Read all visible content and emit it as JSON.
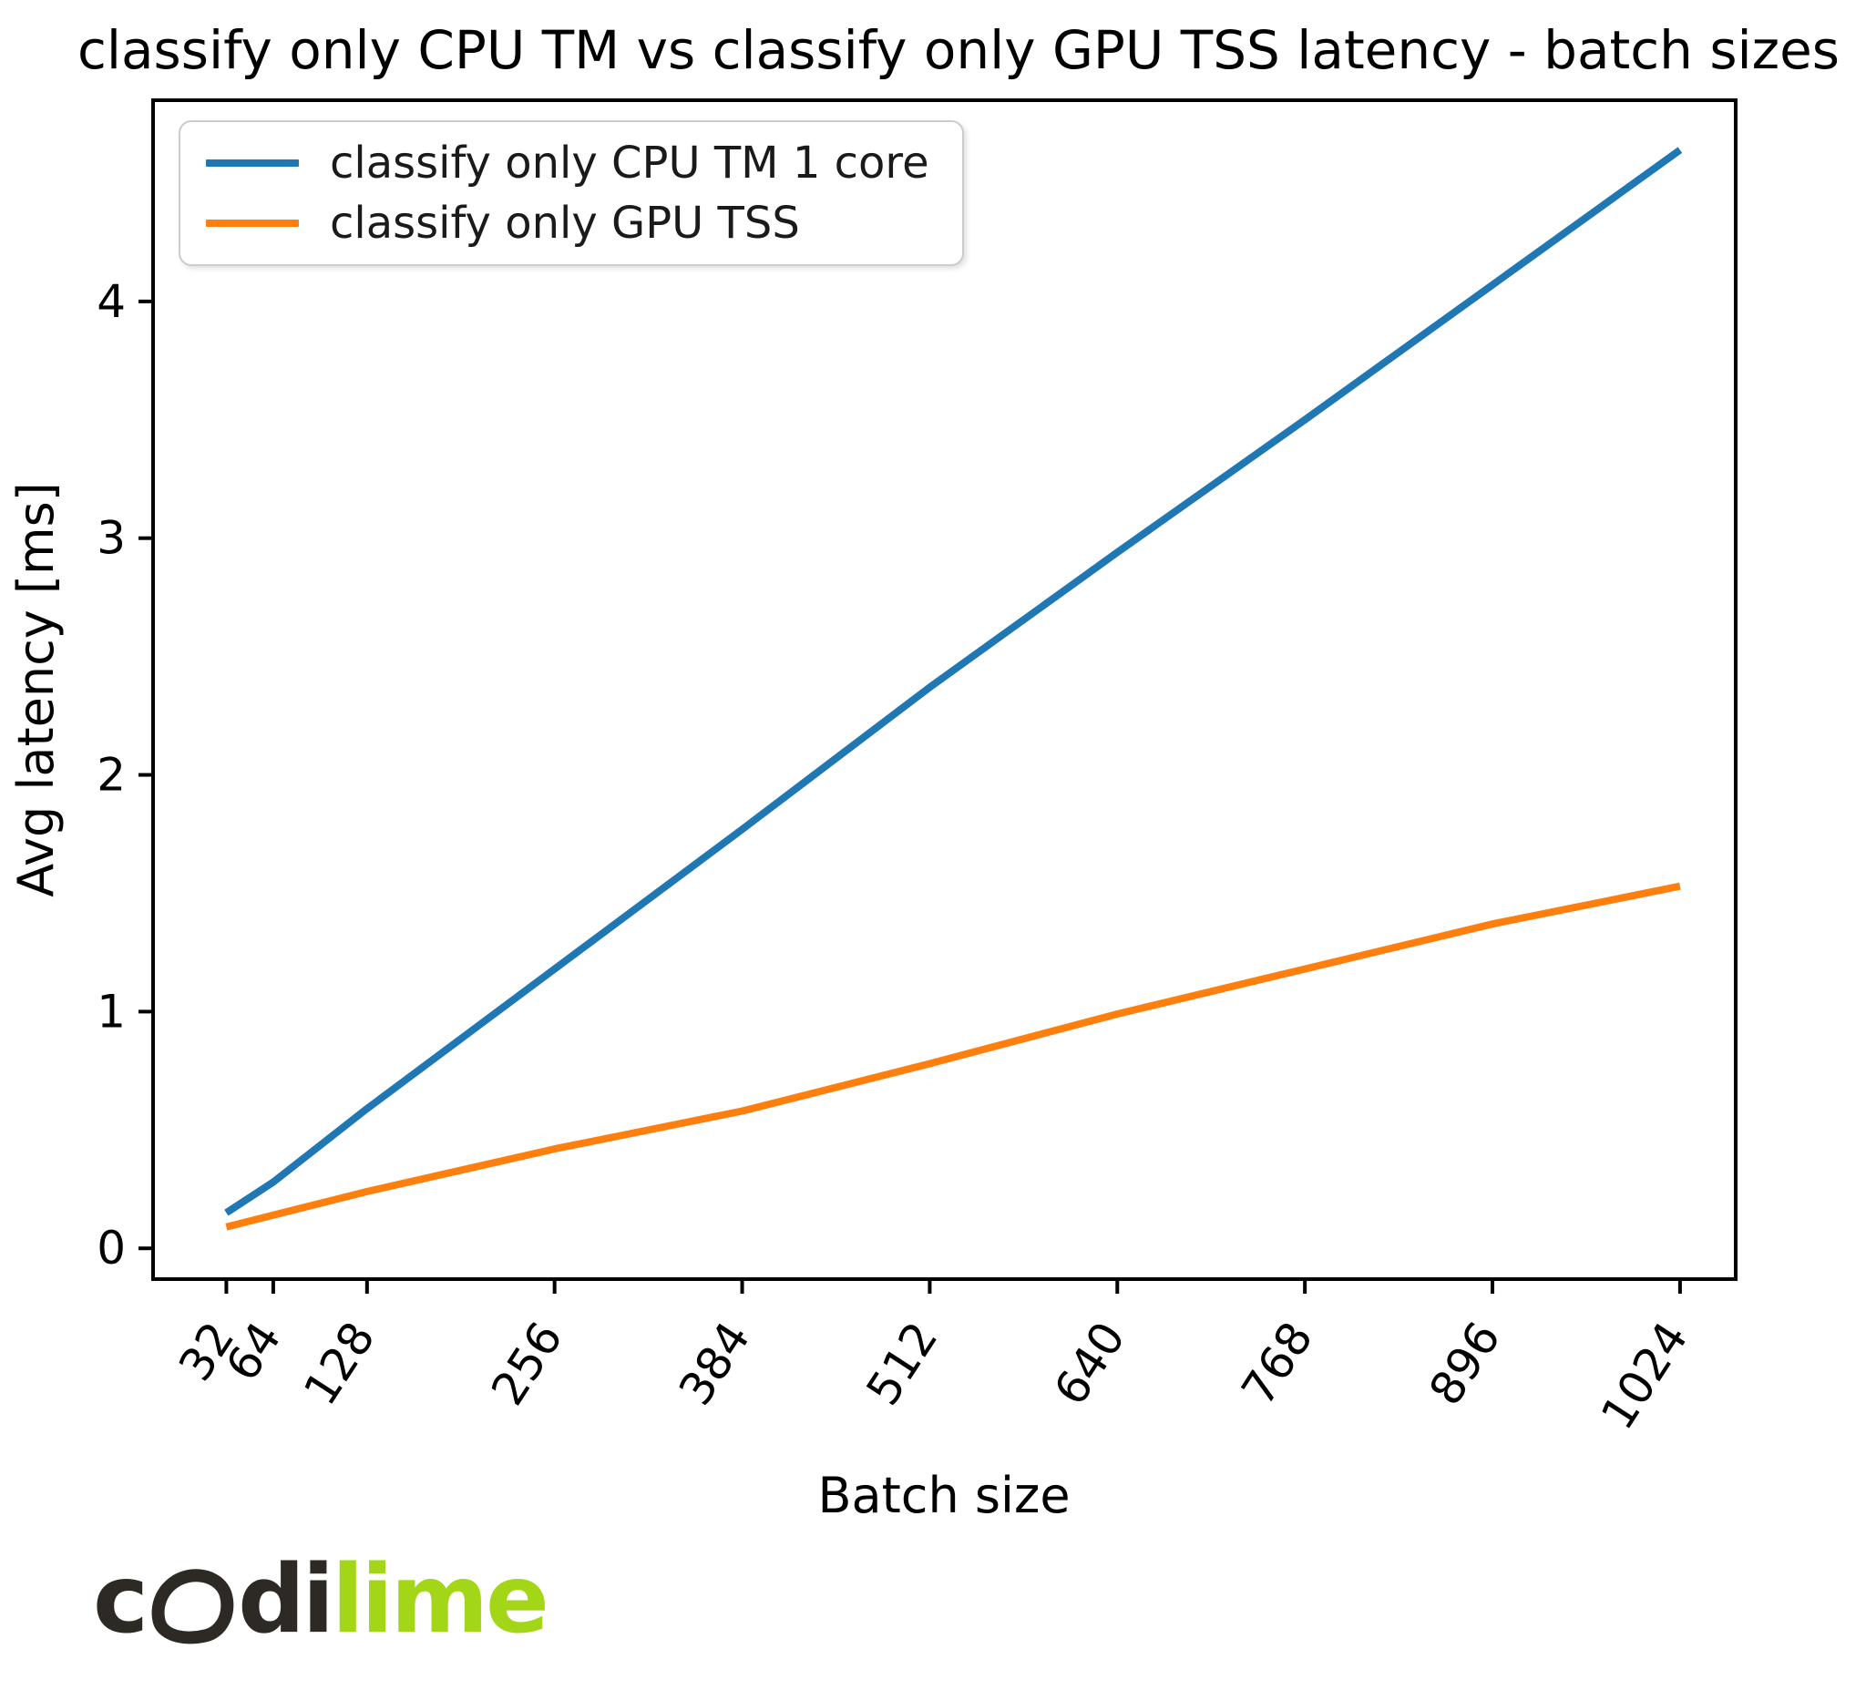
{
  "title": "classify only CPU TM vs classify only GPU TSS latency - batch sizes",
  "chart_data": {
    "type": "line",
    "x": [
      32,
      64,
      128,
      256,
      384,
      512,
      640,
      768,
      896,
      1024
    ],
    "x_ticks": [
      "32",
      "64",
      "128",
      "256",
      "384",
      "512",
      "640",
      "768",
      "896",
      "1024"
    ],
    "y_ticks": [
      "0",
      "1",
      "2",
      "3",
      "4"
    ],
    "y_tick_values": [
      0,
      1,
      2,
      3,
      4
    ],
    "series": [
      {
        "name": "classify only CPU TM 1 core",
        "color": "#1f77b4",
        "values": [
          0.15,
          0.28,
          0.59,
          1.18,
          1.77,
          2.37,
          2.94,
          3.5,
          4.07,
          4.64
        ]
      },
      {
        "name": "classify only GPU TSS",
        "color": "#ff7f0e",
        "values": [
          0.09,
          0.14,
          0.24,
          0.42,
          0.58,
          0.78,
          0.99,
          1.18,
          1.37,
          1.53
        ]
      }
    ],
    "xlabel": "Batch size",
    "ylabel": "Avg latency [ms]",
    "xlim": [
      -18,
      1062
    ],
    "ylim": [
      -0.13,
      4.85
    ],
    "grid": false,
    "legend_position": "upper left"
  },
  "legend": {
    "items": [
      {
        "label": "classify only CPU TM 1 core",
        "color": "#1f77b4"
      },
      {
        "label": "classify only GPU TSS",
        "color": "#ff7f0e"
      }
    ]
  },
  "logo": {
    "text": "codilime",
    "part_c": "c",
    "part_di": "di",
    "part_lime": "lime",
    "dark_color": "#2d2a26",
    "green_color": "#a3d616"
  }
}
